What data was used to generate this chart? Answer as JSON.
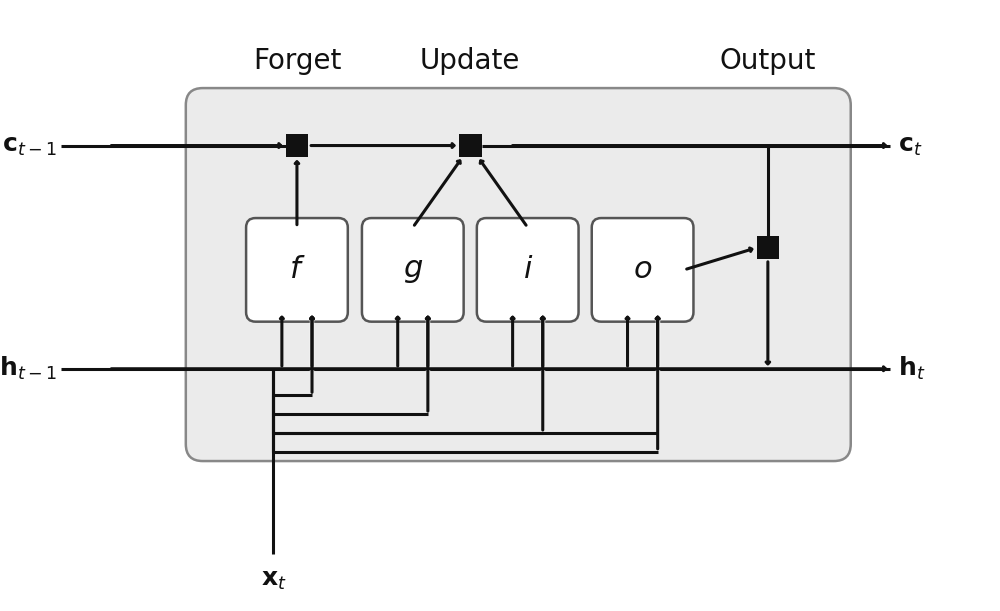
{
  "fig_width": 10.0,
  "fig_height": 6.11,
  "bg_color": "#ffffff",
  "box_bg": "#ebebeb",
  "box_edge": "#888888",
  "gate_bg": "#ffffff",
  "gate_edge": "#555555",
  "sq_color": "#111111",
  "arrow_color": "#111111",
  "text_color": "#111111",
  "title_color": "#111111",
  "labels": {
    "forget": "Forget",
    "update": "Update",
    "output": "Output",
    "ct_in": "$\\mathbf{c}_{t-1}$",
    "ct_out": "$\\mathbf{c}_t$",
    "ht_in": "$\\mathbf{h}_{t-1}$",
    "ht_out": "$\\mathbf{h}_t$",
    "xt": "$\\mathbf{x}_t$",
    "f": "$f$",
    "g": "$g$",
    "i": "$i$",
    "o": "$o$"
  },
  "xlim": [
    0,
    10
  ],
  "ylim": [
    0,
    6.11
  ]
}
